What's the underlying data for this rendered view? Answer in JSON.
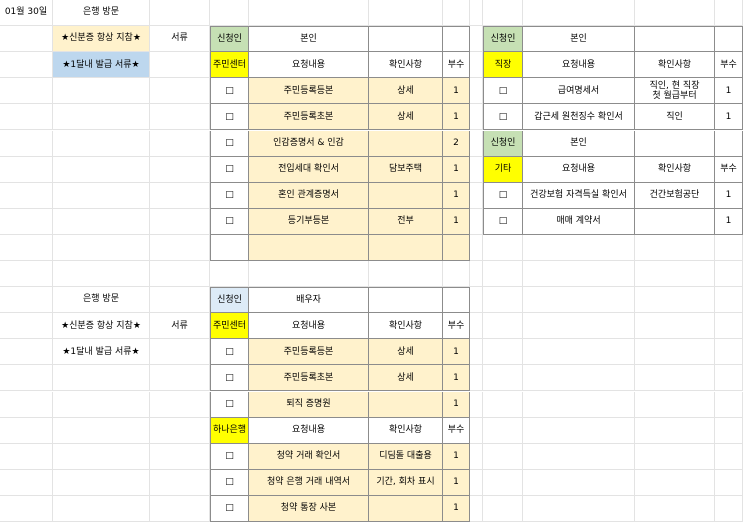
{
  "sheet": {
    "rows": [
      [
        "01월 30일",
        "은행 방문"
      ],
      [
        null,
        "★신분증 항상 지참★",
        "서류",
        "신청인",
        "본인",
        null,
        null,
        null,
        "신청인",
        "본인"
      ],
      [
        null,
        "★1달내 발급 서류★",
        null,
        "주민센터",
        "요청내용",
        "확인사항",
        "부수",
        null,
        "직장",
        "요청내용",
        "확인사항",
        "부수"
      ],
      [
        null,
        null,
        null,
        "□",
        "주민등록등본",
        "상세",
        1,
        null,
        "□",
        "급여명세서",
        "직인, 현 직장\n첫 월급부터",
        1
      ],
      [
        null,
        null,
        null,
        "□",
        "주민등록초본",
        "상세",
        1,
        null,
        "□",
        "갑근세 원천징수 확인서",
        "직인",
        1
      ],
      [
        null,
        null,
        null,
        "□",
        "인감증명서 & 인감",
        null,
        2,
        null,
        "신청인",
        "본인"
      ],
      [
        null,
        null,
        null,
        "□",
        "전입세대 확인서",
        "담보주택",
        1,
        null,
        "기타",
        "요청내용",
        "확인사항",
        "부수"
      ],
      [
        null,
        null,
        null,
        "□",
        "혼인 관계증명서",
        null,
        1,
        null,
        "□",
        "건강보험 자격득실 확인서",
        "건간보험공단",
        1
      ],
      [
        null,
        null,
        null,
        "□",
        "등기부등본",
        "전부",
        1,
        null,
        "□",
        "매매 계약서",
        null,
        1
      ],
      [],
      [],
      [
        null,
        "은행 방문",
        null,
        "신청인",
        "배우자"
      ],
      [
        null,
        "★신분증 항상 지참★",
        "서류",
        "주민센터",
        "요청내용",
        "확인사항",
        "부수"
      ],
      [
        null,
        "★1달내 발급 서류★",
        null,
        "□",
        "주민등록등본",
        "상세",
        1
      ],
      [
        null,
        null,
        null,
        "□",
        "주민등록초본",
        "상세",
        1
      ],
      [
        null,
        null,
        null,
        "□",
        "퇴직 증명원",
        null,
        1
      ],
      [
        null,
        null,
        null,
        "하나은행",
        "요청내용",
        "확인사항",
        "부수"
      ],
      [
        null,
        null,
        null,
        "□",
        "청약 거래 확인서",
        "디딤돌 대출용",
        1
      ],
      [
        null,
        null,
        null,
        "□",
        "청약 은행 거래 내역서",
        "기간, 회차 표시",
        1
      ],
      [
        null,
        null,
        null,
        "□",
        "청약 통장 사본",
        null,
        1
      ]
    ]
  }
}
